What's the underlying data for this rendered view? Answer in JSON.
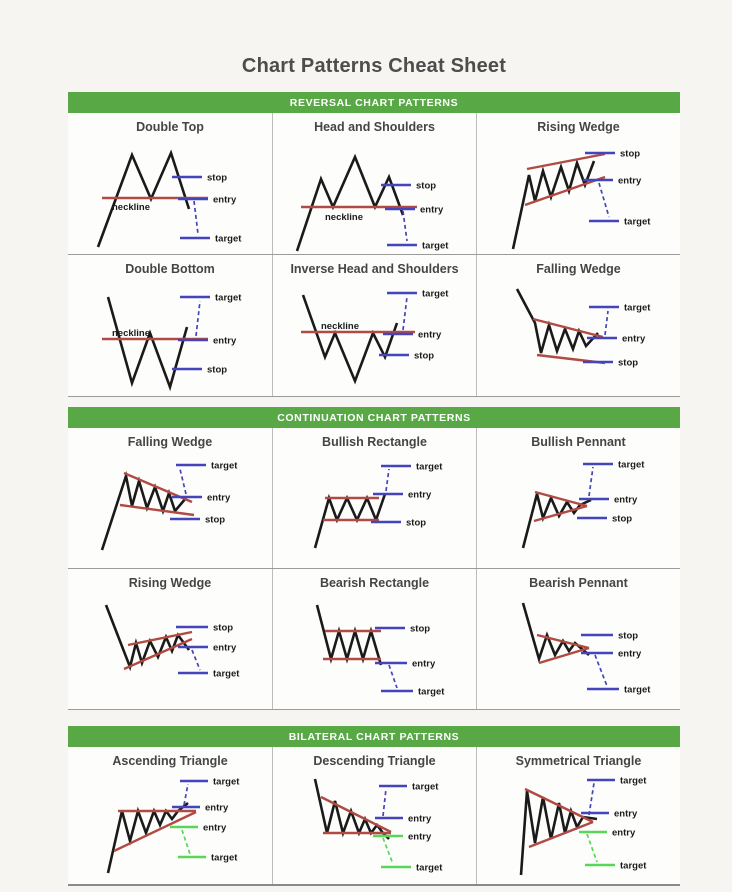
{
  "page": {
    "title": "Chart Patterns Cheat Sheet"
  },
  "colors": {
    "section_header_bg": "#58a846",
    "section_header_text": "#ffffff",
    "price_line": "#1a1a1a",
    "trend_line": "#b04a42",
    "marker_blue": "#4444bb",
    "marker_green": "#57d657",
    "label_text": "#1b1b1b"
  },
  "sections": [
    {
      "id": "reversal",
      "header": "REVERSAL CHART PATTERNS",
      "rows": [
        [
          {
            "id": "double-top",
            "name": "Double Top",
            "neckline_label": "neckline",
            "markers": [
              {
                "label": "stop",
                "color": "blue"
              },
              {
                "label": "entry",
                "color": "blue"
              },
              {
                "label": "target",
                "color": "blue"
              }
            ]
          },
          {
            "id": "head-and-shoulders",
            "name": "Head and Shoulders",
            "neckline_label": "neckline",
            "markers": [
              {
                "label": "stop",
                "color": "blue"
              },
              {
                "label": "entry",
                "color": "blue"
              },
              {
                "label": "target",
                "color": "blue"
              }
            ]
          },
          {
            "id": "rising-wedge-reversal",
            "name": "Rising Wedge",
            "markers": [
              {
                "label": "stop",
                "color": "blue"
              },
              {
                "label": "entry",
                "color": "blue"
              },
              {
                "label": "target",
                "color": "blue"
              }
            ]
          }
        ],
        [
          {
            "id": "double-bottom",
            "name": "Double Bottom",
            "neckline_label": "neckline",
            "markers": [
              {
                "label": "target",
                "color": "blue"
              },
              {
                "label": "entry",
                "color": "blue"
              },
              {
                "label": "stop",
                "color": "blue"
              }
            ]
          },
          {
            "id": "inverse-head-and-shoulders",
            "name": "Inverse Head and Shoulders",
            "neckline_label": "neckline",
            "markers": [
              {
                "label": "target",
                "color": "blue"
              },
              {
                "label": "entry",
                "color": "blue"
              },
              {
                "label": "stop",
                "color": "blue"
              }
            ]
          },
          {
            "id": "falling-wedge-reversal",
            "name": "Falling Wedge",
            "markers": [
              {
                "label": "target",
                "color": "blue"
              },
              {
                "label": "entry",
                "color": "blue"
              },
              {
                "label": "stop",
                "color": "blue"
              }
            ]
          }
        ]
      ]
    },
    {
      "id": "continuation",
      "header": "CONTINUATION CHART PATTERNS",
      "rows": [
        [
          {
            "id": "falling-wedge-continuation",
            "name": "Falling Wedge",
            "markers": [
              {
                "label": "target",
                "color": "blue"
              },
              {
                "label": "entry",
                "color": "blue"
              },
              {
                "label": "stop",
                "color": "blue"
              }
            ]
          },
          {
            "id": "bullish-rectangle",
            "name": "Bullish Rectangle",
            "markers": [
              {
                "label": "target",
                "color": "blue"
              },
              {
                "label": "entry",
                "color": "blue"
              },
              {
                "label": "stop",
                "color": "blue"
              }
            ]
          },
          {
            "id": "bullish-pennant",
            "name": "Bullish Pennant",
            "markers": [
              {
                "label": "target",
                "color": "blue"
              },
              {
                "label": "entry",
                "color": "blue"
              },
              {
                "label": "stop",
                "color": "blue"
              }
            ]
          }
        ],
        [
          {
            "id": "rising-wedge-continuation",
            "name": "Rising Wedge",
            "markers": [
              {
                "label": "stop",
                "color": "blue"
              },
              {
                "label": "entry",
                "color": "blue"
              },
              {
                "label": "target",
                "color": "blue"
              }
            ]
          },
          {
            "id": "bearish-rectangle",
            "name": "Bearish Rectangle",
            "markers": [
              {
                "label": "stop",
                "color": "blue"
              },
              {
                "label": "entry",
                "color": "blue"
              },
              {
                "label": "target",
                "color": "blue"
              }
            ]
          },
          {
            "id": "bearish-pennant",
            "name": "Bearish Pennant",
            "markers": [
              {
                "label": "stop",
                "color": "blue"
              },
              {
                "label": "entry",
                "color": "blue"
              },
              {
                "label": "target",
                "color": "blue"
              }
            ]
          }
        ]
      ]
    },
    {
      "id": "bilateral",
      "header": "BILATERAL CHART PATTERNS",
      "rows": [
        [
          {
            "id": "ascending-triangle",
            "name": "Ascending Triangle",
            "markers": [
              {
                "label": "target",
                "color": "blue"
              },
              {
                "label": "entry",
                "color": "blue"
              },
              {
                "label": "entry",
                "color": "green"
              },
              {
                "label": "target",
                "color": "green"
              }
            ]
          },
          {
            "id": "descending-triangle",
            "name": "Descending Triangle",
            "markers": [
              {
                "label": "target",
                "color": "blue"
              },
              {
                "label": "entry",
                "color": "blue"
              },
              {
                "label": "entry",
                "color": "green"
              },
              {
                "label": "target",
                "color": "green"
              }
            ]
          },
          {
            "id": "symmetrical-triangle",
            "name": "Symmetrical Triangle",
            "markers": [
              {
                "label": "target",
                "color": "blue"
              },
              {
                "label": "entry",
                "color": "blue"
              },
              {
                "label": "entry",
                "color": "green"
              },
              {
                "label": "target",
                "color": "green"
              }
            ]
          }
        ]
      ]
    }
  ]
}
